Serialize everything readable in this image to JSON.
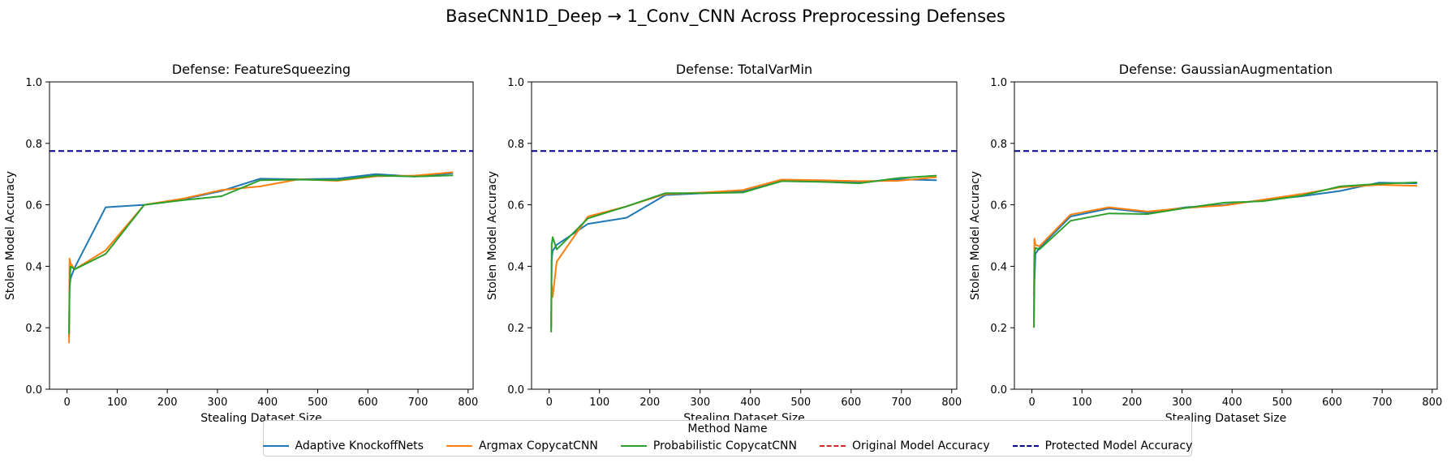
{
  "figure": {
    "title": "BaseCNN1D_Deep → 1_Conv_CNN Across Preprocessing Defenses"
  },
  "legend": {
    "title": "Method Name",
    "items": [
      {
        "label": "Adaptive KnockoffNets",
        "color": "#1f77b4",
        "style": "solid"
      },
      {
        "label": "Argmax CopycatCNN",
        "color": "#ff7f0e",
        "style": "solid"
      },
      {
        "label": "Probabilistic CopycatCNN",
        "color": "#2ca02c",
        "style": "solid"
      },
      {
        "label": "Original Model Accuracy",
        "color": "#d62728",
        "style": "dashed"
      },
      {
        "label": "Protected Model Accuracy",
        "color": "#00008b",
        "style": "dashed"
      }
    ]
  },
  "chart_data": [
    {
      "type": "line",
      "title": "Defense: FeatureSqueezing",
      "xlabel": "Stealing Dataset Size",
      "ylabel": "Stolen Model Accuracy",
      "xlim": [
        -35,
        810
      ],
      "ylim": [
        0.0,
        1.0
      ],
      "xticks": [
        0,
        100,
        200,
        300,
        400,
        500,
        600,
        700,
        800
      ],
      "yticks": [
        0.0,
        0.2,
        0.4,
        0.6,
        0.8,
        1.0
      ],
      "grid": false,
      "hlines": [
        {
          "name": "Protected Model Accuracy",
          "y": 0.775,
          "color": "#00008b",
          "style": "dashed"
        }
      ],
      "series": [
        {
          "name": "Adaptive KnockoffNets",
          "color": "#1f77b4",
          "x": [
            4,
            5,
            7,
            15,
            77,
            154,
            231,
            308,
            385,
            462,
            539,
            616,
            693,
            770
          ],
          "y": [
            0.17,
            0.33,
            0.36,
            0.395,
            0.592,
            0.6,
            0.618,
            0.645,
            0.685,
            0.683,
            0.685,
            0.7,
            0.692,
            0.703
          ]
        },
        {
          "name": "Argmax CopycatCNN",
          "color": "#ff7f0e",
          "x": [
            4,
            5,
            7,
            15,
            77,
            154,
            231,
            308,
            385,
            462,
            539,
            616,
            693,
            770
          ],
          "y": [
            0.15,
            0.425,
            0.41,
            0.39,
            0.452,
            0.6,
            0.62,
            0.648,
            0.66,
            0.683,
            0.678,
            0.693,
            0.695,
            0.706
          ]
        },
        {
          "name": "Probabilistic CopycatCNN",
          "color": "#2ca02c",
          "x": [
            4,
            5,
            7,
            15,
            77,
            154,
            231,
            308,
            385,
            462,
            539,
            616,
            693,
            770
          ],
          "y": [
            0.18,
            0.32,
            0.4,
            0.39,
            0.44,
            0.6,
            0.615,
            0.628,
            0.68,
            0.682,
            0.68,
            0.695,
            0.692,
            0.696
          ]
        }
      ]
    },
    {
      "type": "line",
      "title": "Defense: TotalVarMin",
      "xlabel": "Stealing Dataset Size",
      "ylabel": "Stolen Model Accuracy",
      "xlim": [
        -35,
        810
      ],
      "ylim": [
        0.0,
        1.0
      ],
      "xticks": [
        0,
        100,
        200,
        300,
        400,
        500,
        600,
        700,
        800
      ],
      "yticks": [
        0.0,
        0.2,
        0.4,
        0.6,
        0.8,
        1.0
      ],
      "grid": false,
      "hlines": [
        {
          "name": "Protected Model Accuracy",
          "y": 0.775,
          "color": "#00008b",
          "style": "dashed"
        }
      ],
      "series": [
        {
          "name": "Adaptive KnockoffNets",
          "color": "#1f77b4",
          "x": [
            4,
            5,
            7,
            15,
            77,
            154,
            231,
            308,
            385,
            462,
            539,
            616,
            693,
            770
          ],
          "y": [
            0.2,
            0.42,
            0.45,
            0.47,
            0.538,
            0.558,
            0.632,
            0.638,
            0.643,
            0.677,
            0.677,
            0.673,
            0.683,
            0.68
          ]
        },
        {
          "name": "Argmax CopycatCNN",
          "color": "#ff7f0e",
          "x": [
            4,
            5,
            7,
            15,
            77,
            154,
            231,
            308,
            385,
            462,
            539,
            616,
            693,
            770
          ],
          "y": [
            0.2,
            0.34,
            0.3,
            0.415,
            0.562,
            0.595,
            0.635,
            0.64,
            0.648,
            0.682,
            0.68,
            0.677,
            0.678,
            0.69
          ]
        },
        {
          "name": "Probabilistic CopycatCNN",
          "color": "#2ca02c",
          "x": [
            4,
            5,
            7,
            15,
            77,
            154,
            231,
            308,
            385,
            462,
            539,
            616,
            693,
            770
          ],
          "y": [
            0.185,
            0.47,
            0.495,
            0.455,
            0.556,
            0.595,
            0.638,
            0.638,
            0.64,
            0.677,
            0.675,
            0.67,
            0.687,
            0.695
          ]
        }
      ]
    },
    {
      "type": "line",
      "title": "Defense: GaussianAugmentation",
      "xlabel": "Stealing Dataset Size",
      "ylabel": "Stolen Model Accuracy",
      "xlim": [
        -35,
        810
      ],
      "ylim": [
        0.0,
        1.0
      ],
      "xticks": [
        0,
        100,
        200,
        300,
        400,
        500,
        600,
        700,
        800
      ],
      "yticks": [
        0.0,
        0.2,
        0.4,
        0.6,
        0.8,
        1.0
      ],
      "grid": false,
      "hlines": [
        {
          "name": "Protected Model Accuracy",
          "y": 0.775,
          "color": "#00008b",
          "style": "dashed"
        }
      ],
      "series": [
        {
          "name": "Adaptive KnockoffNets",
          "color": "#1f77b4",
          "x": [
            4,
            5,
            7,
            15,
            77,
            154,
            231,
            308,
            385,
            462,
            539,
            616,
            693,
            770
          ],
          "y": [
            0.22,
            0.35,
            0.44,
            0.46,
            0.562,
            0.588,
            0.575,
            0.592,
            0.6,
            0.615,
            0.628,
            0.645,
            0.672,
            0.67
          ]
        },
        {
          "name": "Argmax CopycatCNN",
          "color": "#ff7f0e",
          "x": [
            4,
            5,
            7,
            15,
            77,
            154,
            231,
            308,
            385,
            462,
            539,
            616,
            693,
            770
          ],
          "y": [
            0.3,
            0.49,
            0.47,
            0.465,
            0.568,
            0.592,
            0.578,
            0.59,
            0.598,
            0.617,
            0.635,
            0.657,
            0.665,
            0.662
          ]
        },
        {
          "name": "Probabilistic CopycatCNN",
          "color": "#2ca02c",
          "x": [
            4,
            5,
            7,
            15,
            77,
            154,
            231,
            308,
            385,
            462,
            539,
            616,
            693,
            770
          ],
          "y": [
            0.2,
            0.44,
            0.46,
            0.455,
            0.548,
            0.572,
            0.57,
            0.59,
            0.607,
            0.612,
            0.63,
            0.66,
            0.668,
            0.673
          ]
        }
      ]
    }
  ]
}
